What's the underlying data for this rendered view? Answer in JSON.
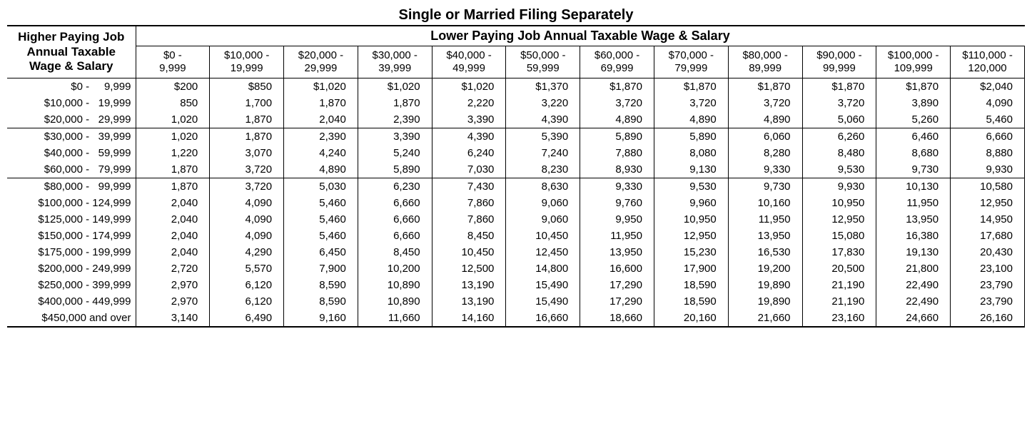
{
  "title": "Single or Married Filing Separately",
  "lower_header": "Lower Paying Job Annual Taxable Wage & Salary",
  "higher_header_lines": [
    "Higher Paying Job",
    "Annual Taxable",
    "Wage & Salary"
  ],
  "column_ranges": [
    {
      "line1": "$0 -",
      "line2": "9,999"
    },
    {
      "line1": "$10,000 -",
      "line2": "19,999"
    },
    {
      "line1": "$20,000 -",
      "line2": "29,999"
    },
    {
      "line1": "$30,000 -",
      "line2": "39,999"
    },
    {
      "line1": "$40,000 -",
      "line2": "49,999"
    },
    {
      "line1": "$50,000 -",
      "line2": "59,999"
    },
    {
      "line1": "$60,000 -",
      "line2": "69,999"
    },
    {
      "line1": "$70,000 -",
      "line2": "79,999"
    },
    {
      "line1": "$80,000 -",
      "line2": "89,999"
    },
    {
      "line1": "$90,000 -",
      "line2": "99,999"
    },
    {
      "line1": "$100,000 -",
      "line2": "109,999"
    },
    {
      "line1": "$110,000 -",
      "line2": "120,000"
    }
  ],
  "rows": [
    {
      "label": "$0 -     9,999",
      "values": [
        "$200",
        "$850",
        "$1,020",
        "$1,020",
        "$1,020",
        "$1,370",
        "$1,870",
        "$1,870",
        "$1,870",
        "$1,870",
        "$1,870",
        "$2,040"
      ],
      "group_end": false
    },
    {
      "label": "$10,000 -   19,999",
      "values": [
        "850",
        "1,700",
        "1,870",
        "1,870",
        "2,220",
        "3,220",
        "3,720",
        "3,720",
        "3,720",
        "3,720",
        "3,890",
        "4,090"
      ],
      "group_end": false
    },
    {
      "label": "$20,000 -   29,999",
      "values": [
        "1,020",
        "1,870",
        "2,040",
        "2,390",
        "3,390",
        "4,390",
        "4,890",
        "4,890",
        "4,890",
        "5,060",
        "5,260",
        "5,460"
      ],
      "group_end": true
    },
    {
      "label": "$30,000 -   39,999",
      "values": [
        "1,020",
        "1,870",
        "2,390",
        "3,390",
        "4,390",
        "5,390",
        "5,890",
        "5,890",
        "6,060",
        "6,260",
        "6,460",
        "6,660"
      ],
      "group_end": false
    },
    {
      "label": "$40,000 -   59,999",
      "values": [
        "1,220",
        "3,070",
        "4,240",
        "5,240",
        "6,240",
        "7,240",
        "7,880",
        "8,080",
        "8,280",
        "8,480",
        "8,680",
        "8,880"
      ],
      "group_end": false
    },
    {
      "label": "$60,000 -   79,999",
      "values": [
        "1,870",
        "3,720",
        "4,890",
        "5,890",
        "7,030",
        "8,230",
        "8,930",
        "9,130",
        "9,330",
        "9,530",
        "9,730",
        "9,930"
      ],
      "group_end": true
    },
    {
      "label": "$80,000 -   99,999",
      "values": [
        "1,870",
        "3,720",
        "5,030",
        "6,230",
        "7,430",
        "8,630",
        "9,330",
        "9,530",
        "9,730",
        "9,930",
        "10,130",
        "10,580"
      ],
      "group_end": false
    },
    {
      "label": "$100,000 - 124,999",
      "values": [
        "2,040",
        "4,090",
        "5,460",
        "6,660",
        "7,860",
        "9,060",
        "9,760",
        "9,960",
        "10,160",
        "10,950",
        "11,950",
        "12,950"
      ],
      "group_end": false
    },
    {
      "label": "$125,000 - 149,999",
      "values": [
        "2,040",
        "4,090",
        "5,460",
        "6,660",
        "7,860",
        "9,060",
        "9,950",
        "10,950",
        "11,950",
        "12,950",
        "13,950",
        "14,950"
      ],
      "group_end": false
    },
    {
      "label": "$150,000 - 174,999",
      "values": [
        "2,040",
        "4,090",
        "5,460",
        "6,660",
        "8,450",
        "10,450",
        "11,950",
        "12,950",
        "13,950",
        "15,080",
        "16,380",
        "17,680"
      ],
      "group_end": false
    },
    {
      "label": "$175,000 - 199,999",
      "values": [
        "2,040",
        "4,290",
        "6,450",
        "8,450",
        "10,450",
        "12,450",
        "13,950",
        "15,230",
        "16,530",
        "17,830",
        "19,130",
        "20,430"
      ],
      "group_end": false
    },
    {
      "label": "$200,000 - 249,999",
      "values": [
        "2,720",
        "5,570",
        "7,900",
        "10,200",
        "12,500",
        "14,800",
        "16,600",
        "17,900",
        "19,200",
        "20,500",
        "21,800",
        "23,100"
      ],
      "group_end": false
    },
    {
      "label": "$250,000 - 399,999",
      "values": [
        "2,970",
        "6,120",
        "8,590",
        "10,890",
        "13,190",
        "15,490",
        "17,290",
        "18,590",
        "19,890",
        "21,190",
        "22,490",
        "23,790"
      ],
      "group_end": false
    },
    {
      "label": "$400,000 - 449,999",
      "values": [
        "2,970",
        "6,120",
        "8,590",
        "10,890",
        "13,190",
        "15,490",
        "17,290",
        "18,590",
        "19,890",
        "21,190",
        "22,490",
        "23,790"
      ],
      "group_end": false
    },
    {
      "label": "$450,000 and over",
      "values": [
        "3,140",
        "6,490",
        "9,160",
        "11,660",
        "14,160",
        "16,660",
        "18,660",
        "20,160",
        "21,660",
        "23,160",
        "24,660",
        "26,160"
      ],
      "group_end": false,
      "last": true
    }
  ],
  "styling": {
    "font_family": "Arial, Helvetica, sans-serif",
    "title_fontsize": 20,
    "header_fontsize": 18,
    "cell_fontsize": 15,
    "border_color": "#000000",
    "background_color": "#ffffff",
    "text_color": "#000000"
  }
}
